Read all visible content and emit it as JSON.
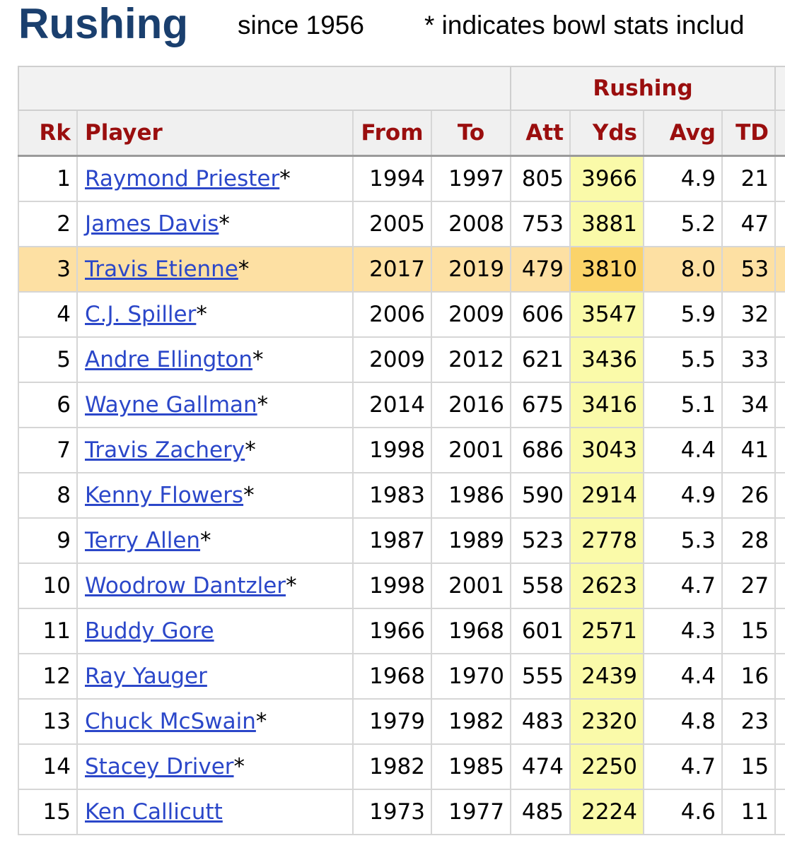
{
  "header": {
    "title": "Rushing",
    "since": "since 1956",
    "note": "* indicates bowl stats includ"
  },
  "table": {
    "group_label": "Rushing",
    "columns": {
      "rk": "Rk",
      "player": "Player",
      "from": "From",
      "to": "To",
      "att": "Att",
      "yds": "Yds",
      "avg": "Avg",
      "td": "TD"
    },
    "highlighted_row": 3,
    "rows": [
      {
        "rk": "1",
        "player": "Raymond Priester",
        "mark": "*",
        "from": "1994",
        "to": "1997",
        "att": "805",
        "yds": "3966",
        "avg": "4.9",
        "td": "21"
      },
      {
        "rk": "2",
        "player": "James Davis",
        "mark": "*",
        "from": "2005",
        "to": "2008",
        "att": "753",
        "yds": "3881",
        "avg": "5.2",
        "td": "47"
      },
      {
        "rk": "3",
        "player": "Travis Etienne",
        "mark": "*",
        "from": "2017",
        "to": "2019",
        "att": "479",
        "yds": "3810",
        "avg": "8.0",
        "td": "53"
      },
      {
        "rk": "4",
        "player": "C.J. Spiller",
        "mark": "*",
        "from": "2006",
        "to": "2009",
        "att": "606",
        "yds": "3547",
        "avg": "5.9",
        "td": "32"
      },
      {
        "rk": "5",
        "player": "Andre Ellington",
        "mark": "*",
        "from": "2009",
        "to": "2012",
        "att": "621",
        "yds": "3436",
        "avg": "5.5",
        "td": "33"
      },
      {
        "rk": "6",
        "player": "Wayne Gallman",
        "mark": "*",
        "from": "2014",
        "to": "2016",
        "att": "675",
        "yds": "3416",
        "avg": "5.1",
        "td": "34"
      },
      {
        "rk": "7",
        "player": "Travis Zachery",
        "mark": "*",
        "from": "1998",
        "to": "2001",
        "att": "686",
        "yds": "3043",
        "avg": "4.4",
        "td": "41"
      },
      {
        "rk": "8",
        "player": "Kenny Flowers",
        "mark": "*",
        "from": "1983",
        "to": "1986",
        "att": "590",
        "yds": "2914",
        "avg": "4.9",
        "td": "26"
      },
      {
        "rk": "9",
        "player": "Terry Allen",
        "mark": "*",
        "from": "1987",
        "to": "1989",
        "att": "523",
        "yds": "2778",
        "avg": "5.3",
        "td": "28"
      },
      {
        "rk": "10",
        "player": "Woodrow Dantzler",
        "mark": "*",
        "from": "1998",
        "to": "2001",
        "att": "558",
        "yds": "2623",
        "avg": "4.7",
        "td": "27"
      },
      {
        "rk": "11",
        "player": "Buddy Gore",
        "mark": "",
        "from": "1966",
        "to": "1968",
        "att": "601",
        "yds": "2571",
        "avg": "4.3",
        "td": "15"
      },
      {
        "rk": "12",
        "player": "Ray Yauger",
        "mark": "",
        "from": "1968",
        "to": "1970",
        "att": "555",
        "yds": "2439",
        "avg": "4.4",
        "td": "16"
      },
      {
        "rk": "13",
        "player": "Chuck McSwain",
        "mark": "*",
        "from": "1979",
        "to": "1982",
        "att": "483",
        "yds": "2320",
        "avg": "4.8",
        "td": "23"
      },
      {
        "rk": "14",
        "player": "Stacey Driver",
        "mark": "*",
        "from": "1982",
        "to": "1985",
        "att": "474",
        "yds": "2250",
        "avg": "4.7",
        "td": "15"
      },
      {
        "rk": "15",
        "player": "Ken Callicutt",
        "mark": "",
        "from": "1973",
        "to": "1977",
        "att": "485",
        "yds": "2224",
        "avg": "4.6",
        "td": "11"
      }
    ]
  }
}
